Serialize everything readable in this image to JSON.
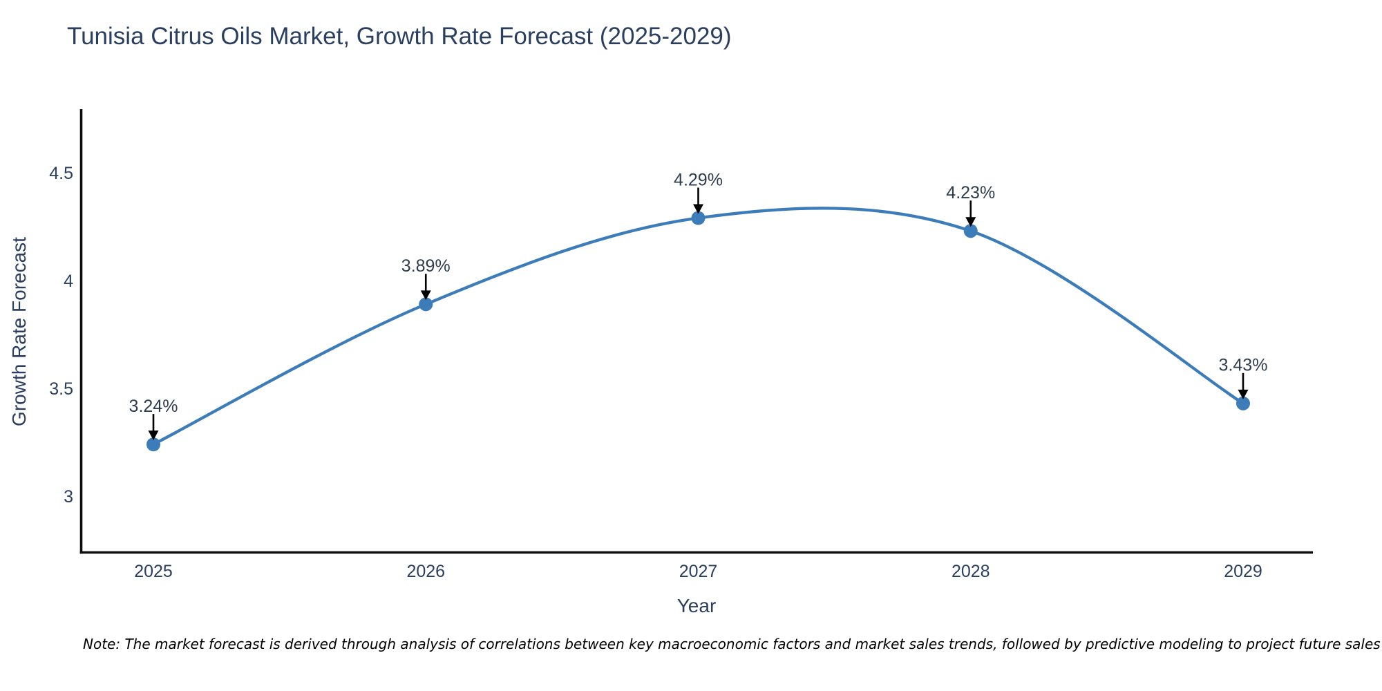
{
  "page": {
    "background": "#ffffff"
  },
  "chart_data": {
    "type": "line",
    "title": "Tunisia Citrus Oils Market, Growth Rate Forecast (2025-2029)",
    "xlabel": "Year",
    "ylabel": "Growth Rate Forecast",
    "x": [
      2025,
      2026,
      2027,
      2028,
      2029
    ],
    "values": [
      3.24,
      3.89,
      4.29,
      4.23,
      3.43
    ],
    "point_labels": [
      "3.24%",
      "3.89%",
      "4.29%",
      "4.23%",
      "3.43%"
    ],
    "xtick_labels": [
      "2025",
      "2026",
      "2027",
      "2028",
      "2029"
    ],
    "ytick_values": [
      4.5,
      4,
      3.5,
      3
    ],
    "ytick_labels": [
      "4.5",
      "4",
      "3.5",
      "3"
    ],
    "xlim": [
      2024.73,
      2029.26
    ],
    "ylim": [
      2.74,
      4.79
    ],
    "grid": false,
    "legend_position": "none",
    "line_shape": "spline",
    "marker": "circle",
    "annotation_arrow_direction": "down",
    "colors": {
      "line": "#3c7cb9",
      "marker": "#3c7cb9",
      "arrow": "#000000",
      "title_text": "#2a3f5f",
      "axis_text": "#2a3f5f",
      "annotation_text": "#2e3c4e",
      "axis_line": "#0e0e0e",
      "note_text": "#000000",
      "background": "#ffffff"
    }
  },
  "note": {
    "text": "Note: The market forecast is derived through analysis of correlations between key macroeconomic factors and market sales trends, followed by predictive modeling to project future sales"
  }
}
